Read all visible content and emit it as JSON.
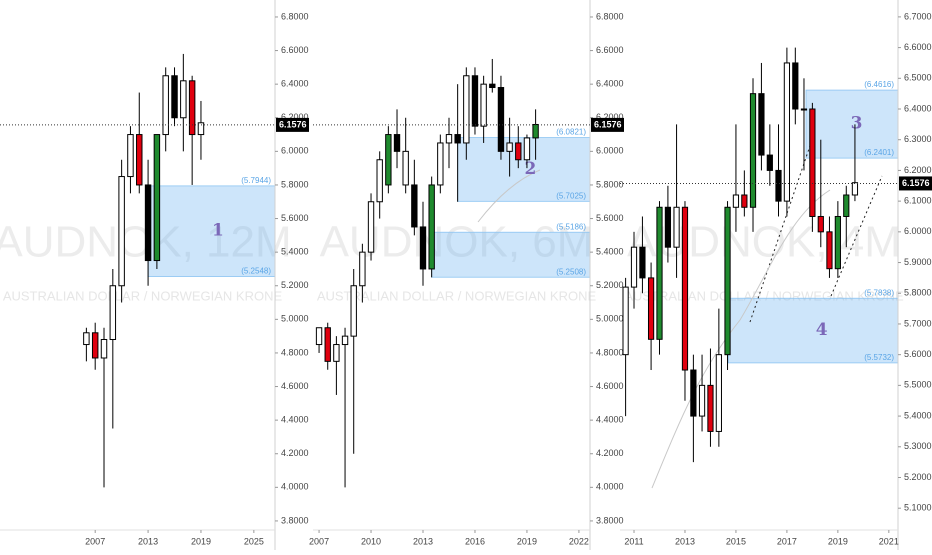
{
  "chart_data": [
    {
      "type": "candlestick",
      "title": "AUDNOK, 12M",
      "subtitle": "AUSTRALIAN DOLLAR / NORWEGIAN KRONE",
      "x": [
        2006,
        2007,
        2008,
        2009,
        2010,
        2011,
        2012,
        2013,
        2014,
        2015,
        2016,
        2017,
        2018,
        2019
      ],
      "open": [
        4.85,
        4.92,
        4.77,
        4.88,
        5.2,
        5.85,
        6.1,
        5.8,
        5.35,
        6.1,
        6.45,
        6.2,
        6.42,
        6.1
      ],
      "high": [
        4.95,
        4.98,
        4.95,
        5.3,
        5.95,
        6.15,
        6.35,
        5.95,
        6.1,
        6.5,
        6.5,
        6.58,
        6.45,
        6.3
      ],
      "low": [
        4.75,
        4.7,
        4.0,
        4.35,
        5.1,
        5.75,
        5.75,
        5.2,
        5.3,
        6.0,
        6.15,
        6.0,
        5.8,
        5.95
      ],
      "close": [
        4.92,
        4.77,
        4.88,
        5.2,
        5.85,
        6.1,
        5.8,
        5.35,
        6.1,
        6.45,
        6.2,
        6.42,
        6.1,
        6.17
      ],
      "colors": [
        "#ffffff",
        "#e0000f",
        "#ffffff",
        "#ffffff",
        "#ffffff",
        "#ffffff",
        "#e0000f",
        "#000000",
        "#1f8a2e",
        "#ffffff",
        "#000000",
        "#ffffff",
        "#e0000f",
        "#ffffff"
      ],
      "xlim": [
        1996.2,
        2027.4
      ],
      "xticks": [
        2007,
        2013,
        2019,
        2025
      ],
      "ylim": [
        3.746,
        6.901
      ],
      "yticks": [
        {
          "value": 3.8,
          "label": "3.8000"
        },
        {
          "value": 4.0,
          "label": "4.0000"
        },
        {
          "value": 4.2,
          "label": "4.2000"
        },
        {
          "value": 4.4,
          "label": "4.4000"
        },
        {
          "value": 4.6,
          "label": "4.6000"
        },
        {
          "value": 4.8,
          "label": "4.8000"
        },
        {
          "value": 5.0,
          "label": "5.0000"
        },
        {
          "value": 5.2,
          "label": "5.2000"
        },
        {
          "value": 5.4,
          "label": "5.4000"
        },
        {
          "value": 5.6,
          "label": "5.6000"
        },
        {
          "value": 5.8,
          "label": "5.8000"
        },
        {
          "value": 6.0,
          "label": "6.0000"
        },
        {
          "value": 6.2,
          "label": "6.2000"
        },
        {
          "value": 6.4,
          "label": "6.4000"
        },
        {
          "value": 6.6,
          "label": "6.6000"
        },
        {
          "value": 6.8,
          "label": "6.8000"
        }
      ],
      "last_price": 6.1576,
      "zones": [
        {
          "name": "1",
          "from": 2013,
          "values": [
            5.7944,
            5.2548
          ],
          "value_labels": [
            "(5.7944)",
            "(5.2548)"
          ]
        }
      ]
    },
    {
      "type": "candlestick",
      "title": "AUDNOK, 6M",
      "subtitle": "AUSTRALIAN DOLLAR / NORWEGIAN KRONE",
      "x": [
        2007,
        2007.5,
        2008,
        2008.5,
        2009,
        2009.5,
        2010,
        2010.5,
        2011,
        2011.5,
        2012,
        2012.5,
        2013,
        2013.5,
        2014,
        2014.5,
        2015,
        2015.5,
        2016,
        2016.5,
        2017,
        2017.5,
        2018,
        2018.5,
        2019,
        2019.5
      ],
      "open": [
        4.85,
        4.95,
        4.75,
        4.85,
        4.9,
        5.2,
        5.4,
        5.7,
        5.8,
        6.1,
        6.0,
        5.8,
        5.55,
        5.3,
        5.8,
        6.05,
        6.1,
        6.05,
        6.45,
        6.15,
        6.4,
        6.38,
        6.0,
        6.05,
        5.95,
        6.08
      ],
      "high": [
        4.95,
        4.98,
        4.9,
        4.95,
        5.3,
        5.45,
        5.75,
        6.0,
        6.15,
        6.25,
        6.2,
        5.95,
        5.7,
        5.85,
        6.1,
        6.2,
        6.4,
        6.5,
        6.5,
        6.45,
        6.55,
        6.45,
        6.2,
        6.15,
        6.1,
        6.25
      ],
      "low": [
        4.8,
        4.7,
        4.55,
        4.0,
        4.2,
        5.1,
        5.35,
        5.6,
        5.75,
        5.9,
        5.75,
        5.5,
        5.2,
        5.25,
        5.75,
        5.9,
        5.7,
        5.95,
        6.1,
        6.05,
        6.35,
        5.95,
        5.85,
        5.9,
        5.9,
        5.95
      ],
      "close": [
        4.95,
        4.75,
        4.85,
        4.9,
        5.2,
        5.4,
        5.7,
        5.95,
        6.1,
        6.0,
        5.8,
        5.55,
        5.3,
        5.8,
        6.05,
        6.1,
        6.05,
        6.45,
        6.15,
        6.4,
        6.38,
        6.0,
        6.05,
        5.95,
        6.08,
        6.16
      ],
      "colors": [
        "#ffffff",
        "#e0000f",
        "#ffffff",
        "#ffffff",
        "#ffffff",
        "#ffffff",
        "#ffffff",
        "#ffffff",
        "#1f8a2e",
        "#000000",
        "#ffffff",
        "#000000",
        "#000000",
        "#1f8a2e",
        "#ffffff",
        "#ffffff",
        "#000000",
        "#ffffff",
        "#000000",
        "#ffffff",
        "#000000",
        "#000000",
        "#ffffff",
        "#e0000f",
        "#ffffff",
        "#1f8a2e"
      ],
      "xlim": [
        2006.65,
        2022.64
      ],
      "xticks": [
        2007,
        2010,
        2013,
        2016,
        2019,
        2022
      ],
      "ylim": [
        3.746,
        6.901
      ],
      "yticks": [
        {
          "value": 3.8,
          "label": "3.8000"
        },
        {
          "value": 4.0,
          "label": "4.0000"
        },
        {
          "value": 4.2,
          "label": "4.2000"
        },
        {
          "value": 4.4,
          "label": "4.4000"
        },
        {
          "value": 4.6,
          "label": "4.6000"
        },
        {
          "value": 4.8,
          "label": "4.8000"
        },
        {
          "value": 5.0,
          "label": "5.0000"
        },
        {
          "value": 5.2,
          "label": "5.2000"
        },
        {
          "value": 5.4,
          "label": "5.4000"
        },
        {
          "value": 5.6,
          "label": "5.6000"
        },
        {
          "value": 5.8,
          "label": "5.8000"
        },
        {
          "value": 6.0,
          "label": "6.0000"
        },
        {
          "value": 6.2,
          "label": "6.2000"
        },
        {
          "value": 6.4,
          "label": "6.4000"
        },
        {
          "value": 6.6,
          "label": "6.6000"
        },
        {
          "value": 6.8,
          "label": "6.8000"
        }
      ],
      "last_price": 6.1576,
      "zones": [
        {
          "name": "2",
          "from": 2015,
          "values": [
            6.0821,
            5.7025
          ],
          "value_labels": [
            "(6.0821)",
            "(5.7025)"
          ]
        },
        {
          "from": 2013.5,
          "values": [
            5.5186,
            5.2508
          ],
          "value_labels": [
            "(5.5186)",
            "(5.2508)"
          ]
        }
      ]
    },
    {
      "type": "candlestick",
      "title": "AUDNOK, 4M",
      "subtitle": "AUSTRALIAN DOLLAR / NORWEGIAN KRONE",
      "x": [
        2010.67,
        2011,
        2011.33,
        2011.67,
        2012,
        2012.33,
        2012.67,
        2013,
        2013.33,
        2013.67,
        2014,
        2014.33,
        2014.67,
        2015,
        2015.33,
        2015.67,
        2016,
        2016.33,
        2016.67,
        2017,
        2017.33,
        2017.67,
        2018,
        2018.33,
        2018.67,
        2019,
        2019.33,
        2019.67
      ],
      "open": [
        5.6,
        5.82,
        5.95,
        5.85,
        5.65,
        6.08,
        5.95,
        6.08,
        5.55,
        5.4,
        5.5,
        5.35,
        5.6,
        6.08,
        6.12,
        6.08,
        6.45,
        6.25,
        6.2,
        6.1,
        6.55,
        6.4,
        6.4,
        6.05,
        6.0,
        5.88,
        6.05,
        6.12
      ],
      "high": [
        5.85,
        6.0,
        6.05,
        5.9,
        6.1,
        6.15,
        6.35,
        6.1,
        5.6,
        5.6,
        5.62,
        5.75,
        6.1,
        6.35,
        6.2,
        6.5,
        6.55,
        6.35,
        6.35,
        6.6,
        6.6,
        6.5,
        6.42,
        6.3,
        6.05,
        6.1,
        6.15,
        6.35
      ],
      "low": [
        5.4,
        5.75,
        5.8,
        5.55,
        5.6,
        5.9,
        5.85,
        5.45,
        5.25,
        5.35,
        5.3,
        5.3,
        5.55,
        6.0,
        6.05,
        6.0,
        6.2,
        6.15,
        6.05,
        6.05,
        6.35,
        6.2,
        6.0,
        5.95,
        5.85,
        5.85,
        5.95,
        6.1
      ],
      "close": [
        5.82,
        5.95,
        5.85,
        5.65,
        6.08,
        5.95,
        6.08,
        5.55,
        5.4,
        5.5,
        5.35,
        5.6,
        6.08,
        6.12,
        6.08,
        6.45,
        6.25,
        6.2,
        6.1,
        6.55,
        6.4,
        6.4,
        6.05,
        6.0,
        5.88,
        6.05,
        6.12,
        6.16
      ],
      "colors": [
        "#ffffff",
        "#ffffff",
        "#000000",
        "#e0000f",
        "#1f8a2e",
        "#000000",
        "#ffffff",
        "#e0000f",
        "#000000",
        "#ffffff",
        "#e0000f",
        "#ffffff",
        "#1f8a2e",
        "#ffffff",
        "#e0000f",
        "#1f8a2e",
        "#000000",
        "#000000",
        "#000000",
        "#ffffff",
        "#000000",
        "#ffffff",
        "#e0000f",
        "#e0000f",
        "#e0000f",
        "#1f8a2e",
        "#1f8a2e",
        "#ffffff"
      ],
      "xlim": [
        2010.45,
        2021.36
      ],
      "xticks": [
        2011,
        2013,
        2015,
        2017,
        2019,
        2021
      ],
      "ylim": [
        5.029,
        6.755
      ],
      "yticks": [
        {
          "value": 5.1,
          "label": "5.1000"
        },
        {
          "value": 5.2,
          "label": "5.2000"
        },
        {
          "value": 5.3,
          "label": "5.3000"
        },
        {
          "value": 5.4,
          "label": "5.4000"
        },
        {
          "value": 5.5,
          "label": "5.5000"
        },
        {
          "value": 5.6,
          "label": "5.6000"
        },
        {
          "value": 5.7,
          "label": "5.7000"
        },
        {
          "value": 5.8,
          "label": "5.8000"
        },
        {
          "value": 5.9,
          "label": "5.9000"
        },
        {
          "value": 6.0,
          "label": "6.0000"
        },
        {
          "value": 6.1,
          "label": "6.1000"
        },
        {
          "value": 6.2,
          "label": "6.2000"
        },
        {
          "value": 6.3,
          "label": "6.3000"
        },
        {
          "value": 6.4,
          "label": "6.4000"
        },
        {
          "value": 6.5,
          "label": "6.5000"
        },
        {
          "value": 6.6,
          "label": "6.6000"
        },
        {
          "value": 6.7,
          "label": "6.7000"
        }
      ],
      "last_price": 6.1576,
      "zones": [
        {
          "name": "3",
          "from": 2017.75,
          "values": [
            6.4616,
            6.2401
          ],
          "value_labels": [
            "(6.4616)",
            "(6.2401)"
          ]
        },
        {
          "name": "4",
          "from": 2014.7,
          "values": [
            5.7838,
            5.5732
          ],
          "value_labels": [
            "(5.7838)",
            "(5.5732)"
          ]
        }
      ]
    }
  ]
}
